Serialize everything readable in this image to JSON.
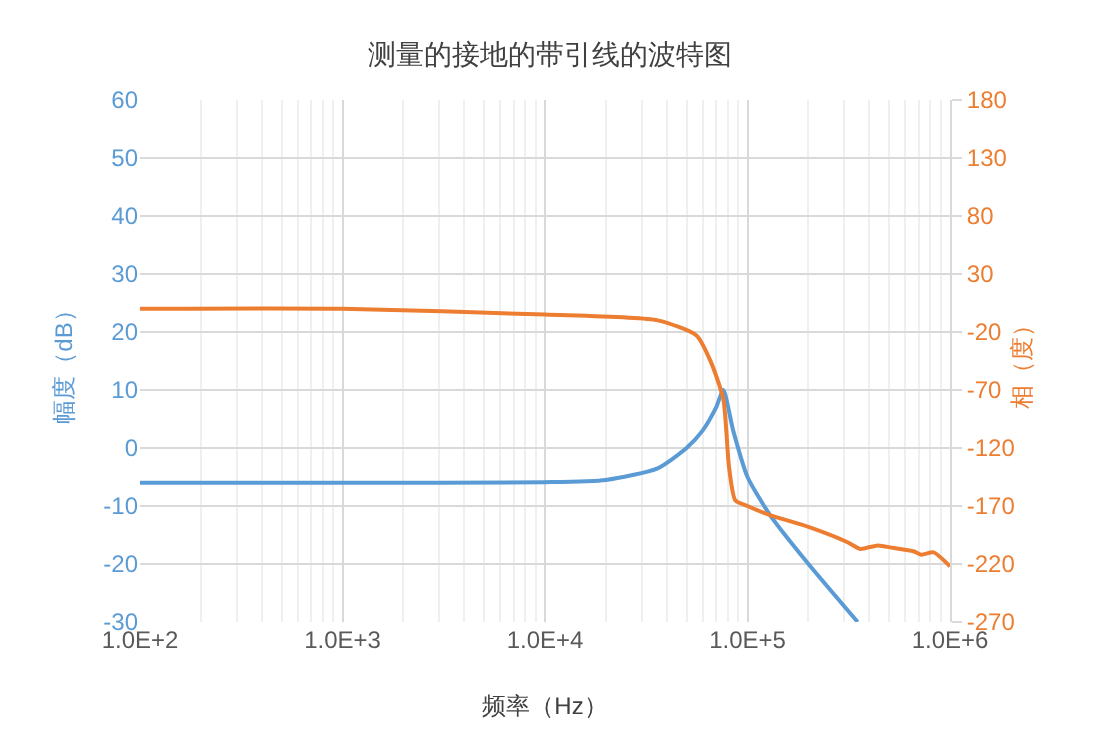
{
  "chart_data": {
    "type": "line",
    "title": "测量的接地的带引线的波特图",
    "xlabel": "频率（Hz）",
    "ylabel": "幅度（dB）",
    "y2label": "相（度）",
    "log": "x",
    "grid": true,
    "xlim": [
      100,
      1000000
    ],
    "xticks": [
      {
        "value": 100,
        "label": "1.0E+2"
      },
      {
        "value": 1000,
        "label": "1.0E+3"
      },
      {
        "value": 10000,
        "label": "1.0E+4"
      },
      {
        "value": 100000,
        "label": "1.0E+5"
      },
      {
        "value": 1000000,
        "label": "1.0E+6"
      }
    ],
    "ylim": [
      -30,
      60
    ],
    "yticks": [
      -30,
      -20,
      -10,
      0,
      10,
      20,
      30,
      40,
      50,
      60
    ],
    "y2lim": [
      -270,
      180
    ],
    "y2ticks": [
      -270,
      -220,
      -170,
      -120,
      -70,
      -20,
      30,
      80,
      130,
      180
    ],
    "series": [
      {
        "color": "#5b9bd5",
        "x": [
          100,
          1000,
          10000,
          20000,
          36000,
          50000,
          60000,
          70000,
          76000,
          85000,
          100000,
          130000,
          200000,
          350000
        ],
        "values": [
          -6,
          -6,
          -5.9,
          -5.5,
          -3.5,
          0,
          3,
          7,
          10,
          3,
          -5,
          -11.7,
          -20,
          -30
        ]
      },
      {
        "color": "#ed7d31",
        "axis": "y2",
        "x": [
          100,
          1000,
          10000,
          36000,
          56000,
          66000,
          76000,
          81000,
          87000,
          100000,
          130000,
          200000,
          310000,
          360000,
          440000,
          520000,
          660000,
          720000,
          830000,
          1000000
        ],
        "values": [
          0,
          0,
          -5,
          -10,
          -23,
          -46,
          -78,
          -136,
          -165,
          -170,
          -178,
          -188,
          -201,
          -207,
          -204,
          -206,
          -209,
          -212,
          -210,
          -222
        ]
      }
    ]
  }
}
